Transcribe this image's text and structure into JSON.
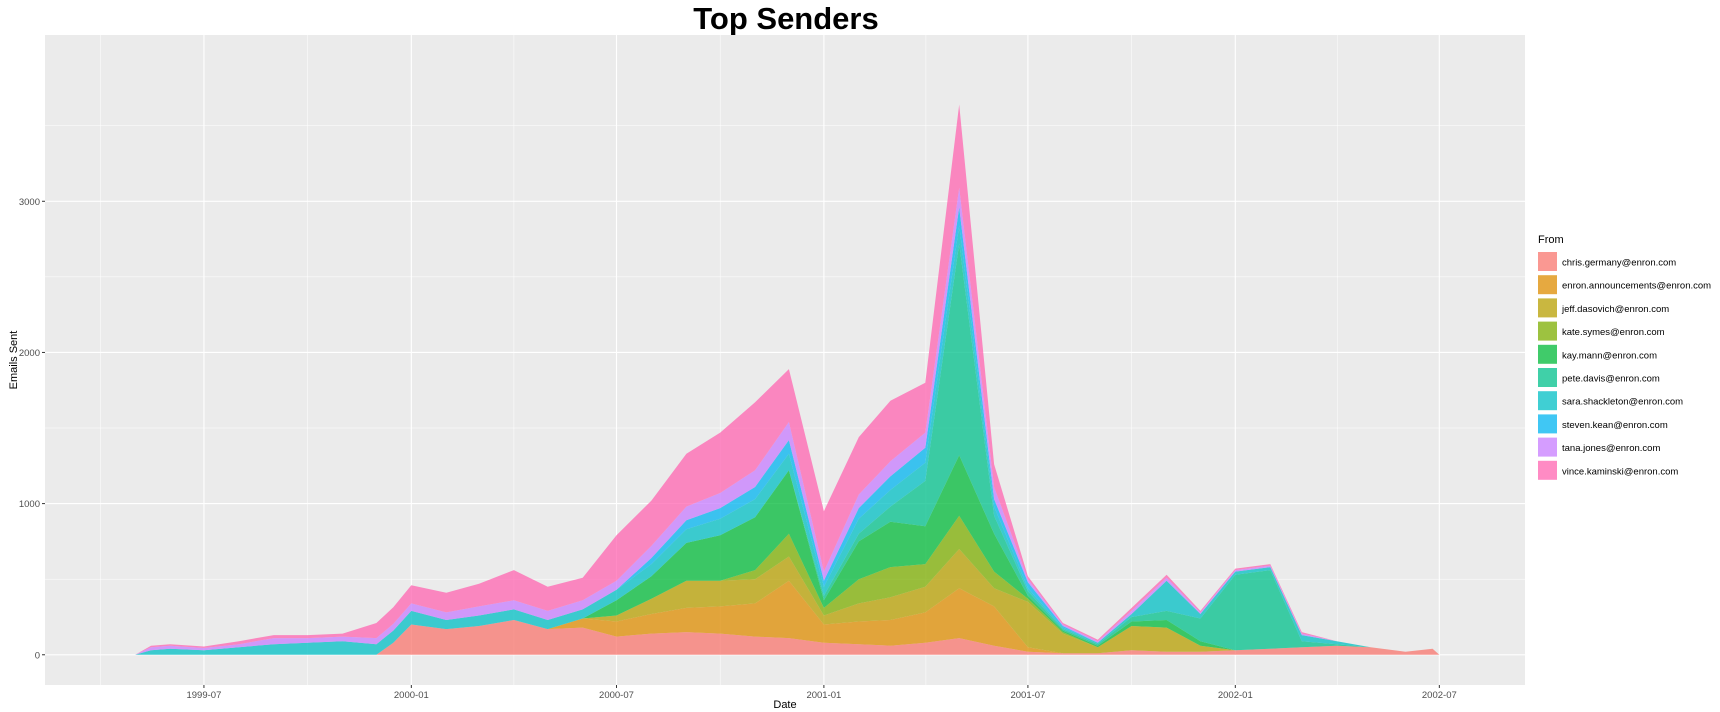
{
  "chart_data": {
    "type": "area",
    "stacked": true,
    "title": "Top Senders",
    "xlabel": "Date",
    "ylabel": "Emails Sent",
    "xlim": [
      "1999-02-10",
      "2002-09-15"
    ],
    "ylim": [
      -200,
      4100
    ],
    "x_ticks": [
      "1999-07",
      "2000-01",
      "2000-07",
      "2001-01",
      "2001-07",
      "2002-01",
      "2002-07"
    ],
    "y_ticks": [
      0,
      1000,
      2000,
      3000
    ],
    "grid": true,
    "legend_title": "From",
    "legend_position": "right",
    "background": "#ebebeb",
    "grid_color": "#ffffff",
    "series": [
      {
        "name": "chris.germany@enron.com",
        "color": "#F8766D",
        "points": [
          [
            "1999-05-01",
            0
          ],
          [
            "1999-12-01",
            0
          ],
          [
            "1999-12-16",
            80
          ],
          [
            "2000-01-01",
            200
          ],
          [
            "2000-02-01",
            170
          ],
          [
            "2000-03-01",
            190
          ],
          [
            "2000-04-01",
            230
          ],
          [
            "2000-05-01",
            170
          ],
          [
            "2000-06-01",
            180
          ],
          [
            "2000-07-01",
            120
          ],
          [
            "2000-08-01",
            140
          ],
          [
            "2000-09-01",
            150
          ],
          [
            "2000-10-01",
            140
          ],
          [
            "2000-11-01",
            120
          ],
          [
            "2000-12-01",
            110
          ],
          [
            "2001-01-01",
            80
          ],
          [
            "2001-02-01",
            70
          ],
          [
            "2001-03-01",
            60
          ],
          [
            "2001-04-01",
            80
          ],
          [
            "2001-05-01",
            110
          ],
          [
            "2001-06-01",
            60
          ],
          [
            "2001-07-01",
            20
          ],
          [
            "2001-08-01",
            10
          ],
          [
            "2001-09-01",
            10
          ],
          [
            "2001-10-01",
            30
          ],
          [
            "2001-11-01",
            20
          ],
          [
            "2001-12-01",
            20
          ],
          [
            "2002-01-01",
            30
          ],
          [
            "2002-02-01",
            40
          ],
          [
            "2002-03-01",
            50
          ],
          [
            "2002-04-01",
            60
          ],
          [
            "2002-05-01",
            50
          ],
          [
            "2002-06-01",
            20
          ],
          [
            "2002-06-25",
            40
          ],
          [
            "2002-07-01",
            0
          ]
        ]
      },
      {
        "name": "enron.announcements@enron.com",
        "color": "#DE8C00",
        "points": [
          [
            "1999-05-01",
            0
          ],
          [
            "2000-05-01",
            0
          ],
          [
            "2000-06-01",
            60
          ],
          [
            "2000-07-01",
            100
          ],
          [
            "2000-08-01",
            130
          ],
          [
            "2000-09-01",
            160
          ],
          [
            "2000-10-01",
            180
          ],
          [
            "2000-11-01",
            220
          ],
          [
            "2000-12-01",
            380
          ],
          [
            "2001-01-01",
            120
          ],
          [
            "2001-02-01",
            150
          ],
          [
            "2001-03-01",
            170
          ],
          [
            "2001-04-01",
            200
          ],
          [
            "2001-05-01",
            330
          ],
          [
            "2001-06-01",
            260
          ],
          [
            "2001-07-01",
            30
          ],
          [
            "2001-08-01",
            0
          ],
          [
            "2002-07-01",
            0
          ]
        ]
      },
      {
        "name": "jeff.dasovich@enron.com",
        "color": "#B79F00",
        "points": [
          [
            "1999-05-01",
            0
          ],
          [
            "2000-06-01",
            0
          ],
          [
            "2000-07-01",
            40
          ],
          [
            "2000-08-01",
            100
          ],
          [
            "2000-09-01",
            180
          ],
          [
            "2000-10-01",
            170
          ],
          [
            "2000-11-01",
            160
          ],
          [
            "2000-12-01",
            160
          ],
          [
            "2001-01-01",
            60
          ],
          [
            "2001-02-01",
            120
          ],
          [
            "2001-03-01",
            150
          ],
          [
            "2001-04-01",
            170
          ],
          [
            "2001-05-01",
            260
          ],
          [
            "2001-06-01",
            120
          ],
          [
            "2001-07-01",
            300
          ],
          [
            "2001-08-01",
            130
          ],
          [
            "2001-09-01",
            40
          ],
          [
            "2001-10-01",
            160
          ],
          [
            "2001-11-01",
            160
          ],
          [
            "2001-12-01",
            40
          ],
          [
            "2002-01-01",
            0
          ],
          [
            "2002-07-01",
            0
          ]
        ]
      },
      {
        "name": "kate.symes@enron.com",
        "color": "#7CAE00",
        "points": [
          [
            "1999-05-01",
            0
          ],
          [
            "2000-10-01",
            0
          ],
          [
            "2000-11-01",
            60
          ],
          [
            "2000-12-01",
            150
          ],
          [
            "2001-01-01",
            50
          ],
          [
            "2001-02-01",
            160
          ],
          [
            "2001-03-01",
            200
          ],
          [
            "2001-04-01",
            150
          ],
          [
            "2001-05-01",
            220
          ],
          [
            "2001-06-01",
            110
          ],
          [
            "2001-07-01",
            20
          ],
          [
            "2001-08-01",
            10
          ],
          [
            "2001-09-01",
            0
          ],
          [
            "2002-07-01",
            0
          ]
        ]
      },
      {
        "name": "kay.mann@enron.com",
        "color": "#00BA38",
        "points": [
          [
            "1999-05-01",
            0
          ],
          [
            "2000-06-01",
            0
          ],
          [
            "2000-07-01",
            100
          ],
          [
            "2000-08-01",
            150
          ],
          [
            "2000-09-01",
            250
          ],
          [
            "2000-10-01",
            300
          ],
          [
            "2000-11-01",
            350
          ],
          [
            "2000-12-01",
            420
          ],
          [
            "2001-01-01",
            50
          ],
          [
            "2001-02-01",
            250
          ],
          [
            "2001-03-01",
            300
          ],
          [
            "2001-04-01",
            250
          ],
          [
            "2001-05-01",
            400
          ],
          [
            "2001-06-01",
            250
          ],
          [
            "2001-07-01",
            20
          ],
          [
            "2001-08-01",
            10
          ],
          [
            "2001-09-01",
            10
          ],
          [
            "2001-10-01",
            30
          ],
          [
            "2001-11-01",
            50
          ],
          [
            "2001-12-01",
            30
          ],
          [
            "2002-01-01",
            0
          ],
          [
            "2002-07-01",
            0
          ]
        ]
      },
      {
        "name": "pete.davis@enron.com",
        "color": "#00C08B",
        "points": [
          [
            "1999-05-01",
            0
          ],
          [
            "2000-12-01",
            0
          ],
          [
            "2001-01-01",
            30
          ],
          [
            "2001-02-01",
            50
          ],
          [
            "2001-03-01",
            100
          ],
          [
            "2001-04-01",
            300
          ],
          [
            "2001-05-01",
            1400
          ],
          [
            "2001-06-01",
            120
          ],
          [
            "2001-07-01",
            30
          ],
          [
            "2001-08-01",
            10
          ],
          [
            "2001-09-01",
            10
          ],
          [
            "2001-10-01",
            30
          ],
          [
            "2001-11-01",
            60
          ],
          [
            "2001-12-01",
            150
          ],
          [
            "2002-01-01",
            500
          ],
          [
            "2002-02-01",
            520
          ],
          [
            "2002-03-01",
            40
          ],
          [
            "2002-04-01",
            10
          ],
          [
            "2002-05-01",
            0
          ],
          [
            "2002-07-01",
            0
          ]
        ]
      },
      {
        "name": "sara.shackleton@enron.com",
        "color": "#00BFC4",
        "points": [
          [
            "1999-05-01",
            0
          ],
          [
            "1999-05-15",
            30
          ],
          [
            "1999-06-01",
            40
          ],
          [
            "1999-07-01",
            30
          ],
          [
            "1999-08-01",
            50
          ],
          [
            "1999-09-01",
            70
          ],
          [
            "1999-10-01",
            80
          ],
          [
            "1999-11-01",
            90
          ],
          [
            "1999-12-01",
            70
          ],
          [
            "2000-01-01",
            90
          ],
          [
            "2000-02-01",
            60
          ],
          [
            "2000-03-01",
            70
          ],
          [
            "2000-04-01",
            70
          ],
          [
            "2000-05-01",
            60
          ],
          [
            "2000-06-01",
            60
          ],
          [
            "2000-07-01",
            70
          ],
          [
            "2000-08-01",
            80
          ],
          [
            "2000-09-01",
            90
          ],
          [
            "2000-10-01",
            110
          ],
          [
            "2000-11-01",
            120
          ],
          [
            "2000-12-01",
            110
          ],
          [
            "2001-01-01",
            60
          ],
          [
            "2001-02-01",
            100
          ],
          [
            "2001-03-01",
            110
          ],
          [
            "2001-04-01",
            120
          ],
          [
            "2001-05-01",
            120
          ],
          [
            "2001-06-01",
            60
          ],
          [
            "2001-07-01",
            20
          ],
          [
            "2001-08-01",
            10
          ],
          [
            "2001-09-01",
            10
          ],
          [
            "2001-10-01",
            20
          ],
          [
            "2001-11-01",
            200
          ],
          [
            "2001-12-01",
            30
          ],
          [
            "2002-01-01",
            20
          ],
          [
            "2002-02-01",
            20
          ],
          [
            "2002-03-01",
            40
          ],
          [
            "2002-04-01",
            20
          ],
          [
            "2002-05-01",
            0
          ],
          [
            "2002-07-01",
            0
          ]
        ]
      },
      {
        "name": "steven.kean@enron.com",
        "color": "#00B4F0",
        "points": [
          [
            "1999-05-01",
            0
          ],
          [
            "2000-07-01",
            0
          ],
          [
            "2000-08-01",
            40
          ],
          [
            "2000-09-01",
            60
          ],
          [
            "2000-10-01",
            70
          ],
          [
            "2000-11-01",
            80
          ],
          [
            "2000-12-01",
            90
          ],
          [
            "2001-01-01",
            40
          ],
          [
            "2001-02-01",
            70
          ],
          [
            "2001-03-01",
            90
          ],
          [
            "2001-04-01",
            100
          ],
          [
            "2001-05-01",
            120
          ],
          [
            "2001-06-01",
            50
          ],
          [
            "2001-07-01",
            40
          ],
          [
            "2001-08-01",
            10
          ],
          [
            "2001-09-01",
            0
          ],
          [
            "2002-07-01",
            0
          ]
        ]
      },
      {
        "name": "tana.jones@enron.com",
        "color": "#C77CFF",
        "points": [
          [
            "1999-05-01",
            0
          ],
          [
            "1999-05-15",
            20
          ],
          [
            "1999-06-01",
            20
          ],
          [
            "1999-07-01",
            15
          ],
          [
            "1999-08-01",
            20
          ],
          [
            "1999-09-01",
            40
          ],
          [
            "1999-10-01",
            30
          ],
          [
            "1999-11-01",
            30
          ],
          [
            "1999-12-01",
            40
          ],
          [
            "2000-01-01",
            50
          ],
          [
            "2000-02-01",
            50
          ],
          [
            "2000-03-01",
            60
          ],
          [
            "2000-04-01",
            60
          ],
          [
            "2000-05-01",
            60
          ],
          [
            "2000-06-01",
            60
          ],
          [
            "2000-07-01",
            60
          ],
          [
            "2000-08-01",
            80
          ],
          [
            "2000-09-01",
            90
          ],
          [
            "2000-10-01",
            100
          ],
          [
            "2000-11-01",
            110
          ],
          [
            "2000-12-01",
            120
          ],
          [
            "2001-01-01",
            60
          ],
          [
            "2001-02-01",
            90
          ],
          [
            "2001-03-01",
            100
          ],
          [
            "2001-04-01",
            100
          ],
          [
            "2001-05-01",
            130
          ],
          [
            "2001-06-01",
            80
          ],
          [
            "2001-07-01",
            20
          ],
          [
            "2001-08-01",
            10
          ],
          [
            "2001-09-01",
            10
          ],
          [
            "2001-10-01",
            20
          ],
          [
            "2001-11-01",
            20
          ],
          [
            "2001-12-01",
            10
          ],
          [
            "2002-01-01",
            10
          ],
          [
            "2002-02-01",
            10
          ],
          [
            "2002-03-01",
            10
          ],
          [
            "2002-04-01",
            0
          ],
          [
            "2002-07-01",
            0
          ]
        ]
      },
      {
        "name": "vince.kaminski@enron.com",
        "color": "#FF64B0",
        "points": [
          [
            "1999-05-01",
            0
          ],
          [
            "1999-05-15",
            10
          ],
          [
            "1999-06-01",
            10
          ],
          [
            "1999-07-01",
            10
          ],
          [
            "1999-08-01",
            20
          ],
          [
            "1999-09-01",
            20
          ],
          [
            "1999-10-01",
            20
          ],
          [
            "1999-11-01",
            20
          ],
          [
            "1999-12-01",
            100
          ],
          [
            "2000-01-01",
            120
          ],
          [
            "2000-02-01",
            130
          ],
          [
            "2000-03-01",
            150
          ],
          [
            "2000-04-01",
            200
          ],
          [
            "2000-05-01",
            160
          ],
          [
            "2000-06-01",
            150
          ],
          [
            "2000-07-01",
            300
          ],
          [
            "2000-08-01",
            300
          ],
          [
            "2000-09-01",
            350
          ],
          [
            "2000-10-01",
            400
          ],
          [
            "2000-11-01",
            450
          ],
          [
            "2000-12-01",
            350
          ],
          [
            "2001-01-01",
            400
          ],
          [
            "2001-02-01",
            380
          ],
          [
            "2001-03-01",
            400
          ],
          [
            "2001-04-01",
            330
          ],
          [
            "2001-05-01",
            550
          ],
          [
            "2001-06-01",
            150
          ],
          [
            "2001-07-01",
            20
          ],
          [
            "2001-08-01",
            10
          ],
          [
            "2001-09-01",
            10
          ],
          [
            "2001-10-01",
            20
          ],
          [
            "2001-11-01",
            20
          ],
          [
            "2001-12-01",
            10
          ],
          [
            "2002-01-01",
            10
          ],
          [
            "2002-02-01",
            10
          ],
          [
            "2002-03-01",
            10
          ],
          [
            "2002-04-01",
            0
          ],
          [
            "2002-07-01",
            0
          ]
        ]
      }
    ]
  }
}
